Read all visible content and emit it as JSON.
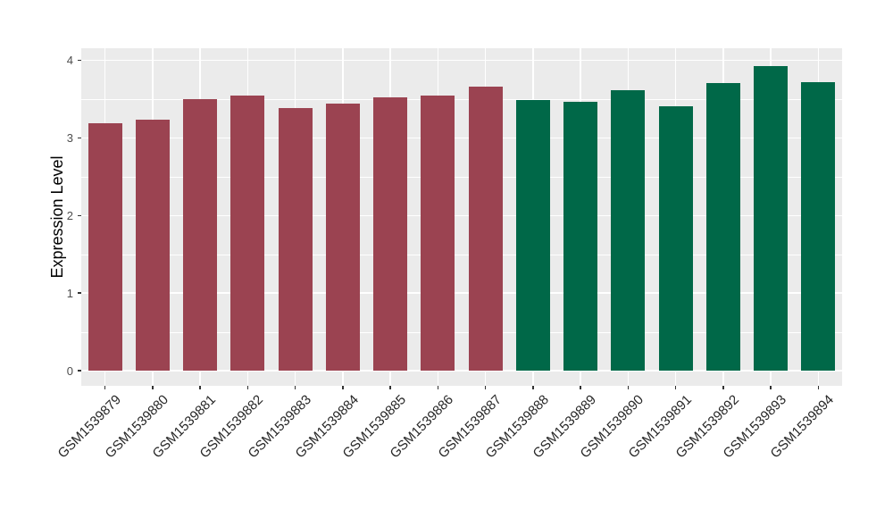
{
  "chart_data": {
    "type": "bar",
    "title": "",
    "ylabel": "Expression Level",
    "xlabel": "",
    "ylim": [
      0,
      4.15
    ],
    "yticks": [
      0,
      1,
      2,
      3,
      4
    ],
    "grid": "major horizontal and vertical white lines, minor horizontal at 0.5 steps",
    "legend": "none",
    "categories": [
      "GSM1539879",
      "GSM1539880",
      "GSM1539881",
      "GSM1539882",
      "GSM1539883",
      "GSM1539884",
      "GSM1539885",
      "GSM1539886",
      "GSM1539887",
      "GSM1539888",
      "GSM1539889",
      "GSM1539890",
      "GSM1539891",
      "GSM1539892",
      "GSM1539893",
      "GSM1539894"
    ],
    "values": [
      3.19,
      3.24,
      3.5,
      3.55,
      3.38,
      3.44,
      3.52,
      3.55,
      3.66,
      3.49,
      3.47,
      3.62,
      3.41,
      3.71,
      3.92,
      3.72
    ],
    "bar_groups": [
      "group1",
      "group1",
      "group1",
      "group1",
      "group1",
      "group1",
      "group1",
      "group1",
      "group1",
      "group2",
      "group2",
      "group2",
      "group2",
      "group2",
      "group2",
      "group2"
    ],
    "group_colors": {
      "group1": "#9B4351",
      "group2": "#006848"
    },
    "style": {
      "panel_bg": "#EBEBEB",
      "grid_color": "#FFFFFF",
      "y_tick_label_color": "#4D4D4D",
      "x_tick_label_color": "#262626",
      "axis_title_color": "#000000",
      "tick_mark_color": "#333333"
    }
  }
}
